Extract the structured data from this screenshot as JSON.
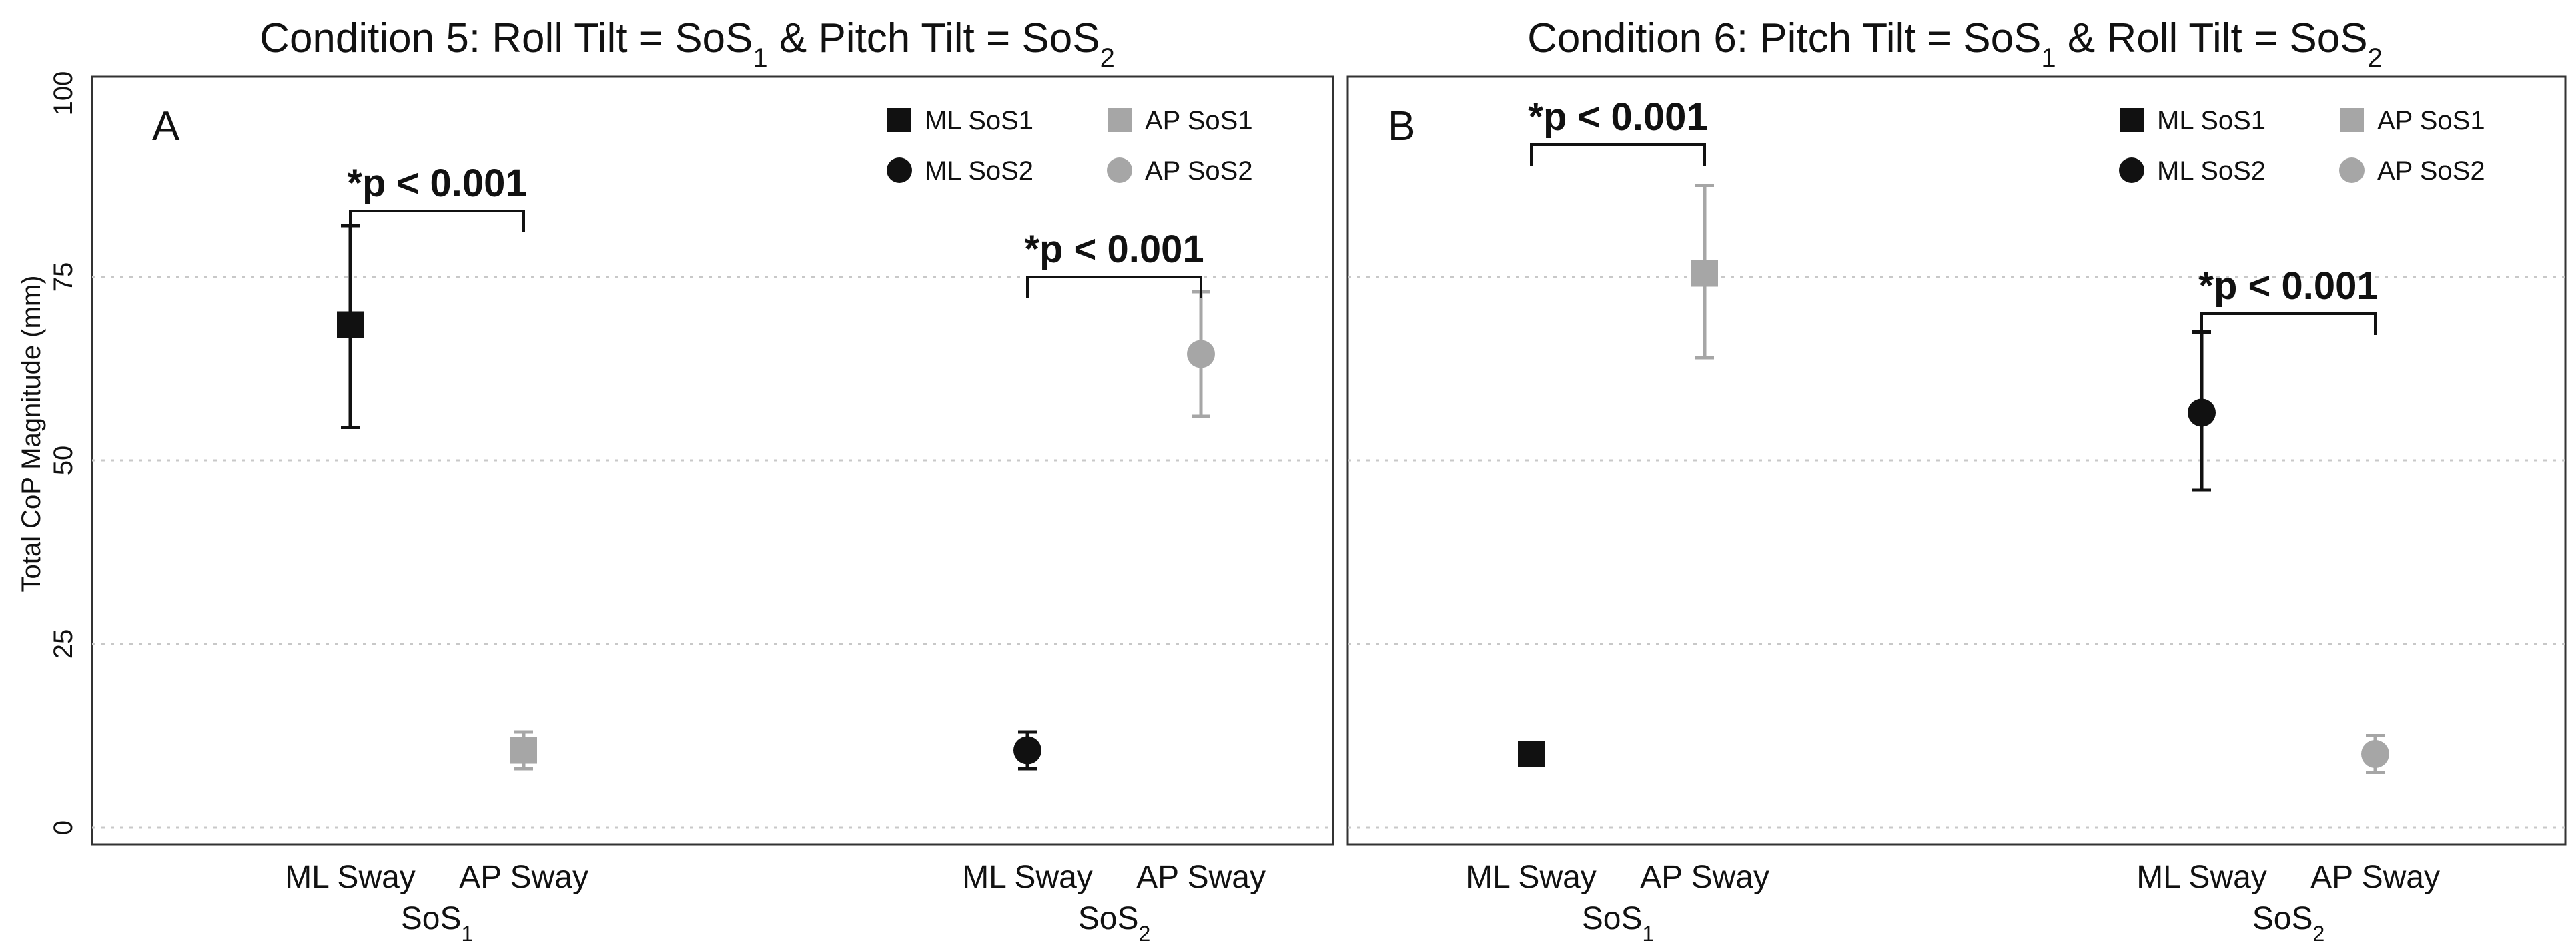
{
  "figure": {
    "ylabel": "Total CoP Magnitude (mm)",
    "ylim": [
      0,
      100
    ],
    "yticks": [
      0,
      25,
      50,
      75,
      100
    ],
    "colors": {
      "ML": "#111111",
      "AP": "#a6a6a6"
    }
  },
  "chart_data": [
    {
      "type": "scatter",
      "panel": "A",
      "title": {
        "main": "Condition 5: Roll Tilt = SoS",
        "sub1": "1",
        "mid": " & Pitch Tilt = SoS",
        "sub2": "2"
      },
      "ylabel": "Total CoP Magnitude (mm)",
      "ylim": [
        0,
        100
      ],
      "groups": [
        {
          "label": "SoS",
          "sub": "1",
          "categories": [
            "ML Sway",
            "AP Sway"
          ]
        },
        {
          "label": "SoS",
          "sub": "2",
          "categories": [
            "ML Sway",
            "AP Sway"
          ]
        }
      ],
      "legend": [
        "ML SoS1",
        "AP SoS1",
        "ML SoS2",
        "AP SoS2"
      ],
      "series": [
        {
          "name": "ML SoS1",
          "marker": "square",
          "color": "#111111",
          "group": 0,
          "slot": 0,
          "mean": 68.5,
          "lower": 54.5,
          "upper": 82
        },
        {
          "name": "AP SoS1",
          "marker": "square",
          "color": "#a6a6a6",
          "group": 0,
          "slot": 1,
          "mean": 10.5,
          "lower": 8,
          "upper": 13
        },
        {
          "name": "ML SoS2",
          "marker": "circle",
          "color": "#111111",
          "group": 1,
          "slot": 0,
          "mean": 10.5,
          "lower": 8,
          "upper": 13
        },
        {
          "name": "AP SoS2",
          "marker": "circle",
          "color": "#a6a6a6",
          "group": 1,
          "slot": 1,
          "mean": 64.5,
          "lower": 56,
          "upper": 73
        }
      ],
      "significance": [
        {
          "label": "*p < 0.001",
          "group": 0,
          "y": 84
        },
        {
          "label": "*p < 0.001",
          "group": 1,
          "y": 75
        }
      ]
    },
    {
      "type": "scatter",
      "panel": "B",
      "title": {
        "main": "Condition 6: Pitch Tilt = SoS",
        "sub1": "1",
        "mid": " & Roll Tilt = SoS",
        "sub2": "2"
      },
      "ylabel": "Total CoP Magnitude (mm)",
      "ylim": [
        0,
        100
      ],
      "groups": [
        {
          "label": "SoS",
          "sub": "1",
          "categories": [
            "ML Sway",
            "AP Sway"
          ]
        },
        {
          "label": "SoS",
          "sub": "2",
          "categories": [
            "ML Sway",
            "AP Sway"
          ]
        }
      ],
      "legend": [
        "ML SoS1",
        "AP SoS1",
        "ML SoS2",
        "AP SoS2"
      ],
      "series": [
        {
          "name": "ML SoS1",
          "marker": "square",
          "color": "#111111",
          "group": 0,
          "slot": 0,
          "mean": 10,
          "lower": 8.5,
          "upper": 11.5
        },
        {
          "name": "AP SoS1",
          "marker": "square",
          "color": "#a6a6a6",
          "group": 0,
          "slot": 1,
          "mean": 75.5,
          "lower": 64,
          "upper": 87.5
        },
        {
          "name": "ML SoS2",
          "marker": "circle",
          "color": "#111111",
          "group": 1,
          "slot": 0,
          "mean": 56.5,
          "lower": 46,
          "upper": 67.5
        },
        {
          "name": "AP SoS2",
          "marker": "circle",
          "color": "#a6a6a6",
          "group": 1,
          "slot": 1,
          "mean": 10,
          "lower": 7.5,
          "upper": 12.5
        }
      ],
      "significance": [
        {
          "label": "*p < 0.001",
          "group": 0,
          "y": 93
        },
        {
          "label": "*p < 0.001",
          "group": 1,
          "y": 70
        }
      ]
    }
  ]
}
